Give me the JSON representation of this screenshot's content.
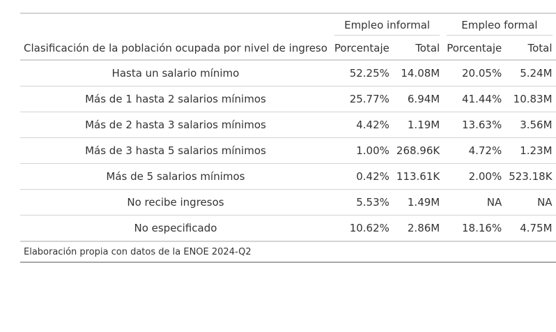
{
  "chart_data": {
    "type": "table",
    "stub_header": "Clasificación de la población ocupada por nivel de ingreso",
    "spanners": [
      {
        "label": "Empleo informal"
      },
      {
        "label": "Empleo formal"
      }
    ],
    "columns": [
      "Porcentaje",
      "Total",
      "Porcentaje",
      "Total"
    ],
    "rows": [
      {
        "label": "Hasta un salario mínimo",
        "values": [
          "52.25%",
          "14.08M",
          "20.05%",
          "5.24M"
        ]
      },
      {
        "label": "Más de 1 hasta 2 salarios mínimos",
        "values": [
          "25.77%",
          "6.94M",
          "41.44%",
          "10.83M"
        ]
      },
      {
        "label": "Más de 2 hasta 3 salarios mínimos",
        "values": [
          "4.42%",
          "1.19M",
          "13.63%",
          "3.56M"
        ]
      },
      {
        "label": "Más de 3 hasta 5 salarios mínimos",
        "values": [
          "1.00%",
          "268.96K",
          "4.72%",
          "1.23M"
        ]
      },
      {
        "label": "Más de 5 salarios mínimos",
        "values": [
          "0.42%",
          "113.61K",
          "2.00%",
          "523.18K"
        ]
      },
      {
        "label": "No recibe ingresos",
        "values": [
          "5.53%",
          "1.49M",
          "NA",
          "NA"
        ]
      },
      {
        "label": "No especificado",
        "values": [
          "10.62%",
          "2.86M",
          "18.16%",
          "4.75M"
        ]
      }
    ],
    "source_note": "Elaboración propia con datos de la ENOE 2024-Q2"
  }
}
